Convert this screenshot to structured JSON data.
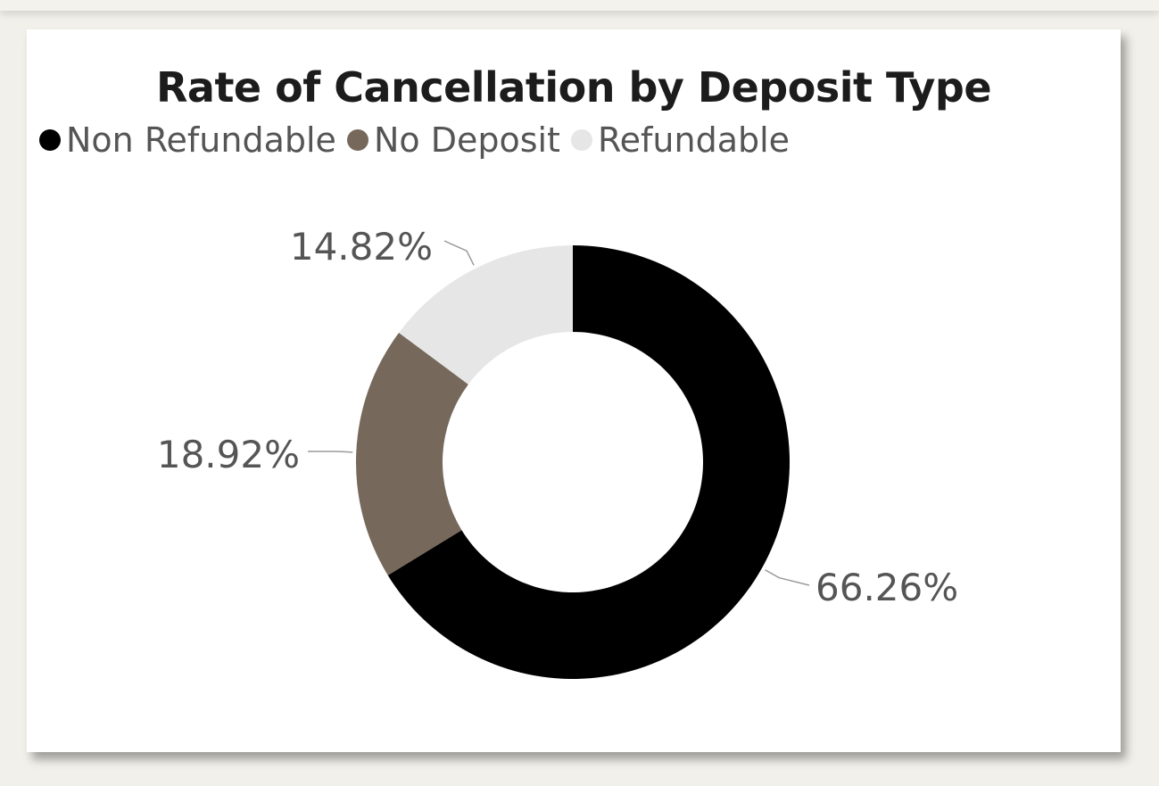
{
  "chart_data": {
    "type": "donut",
    "title": "Rate of Cancellation by Deposit Type",
    "legend_position": "top-left",
    "slices": [
      {
        "name": "Non Refundable",
        "value": 66.26,
        "label": "66.26%",
        "color": "#000000"
      },
      {
        "name": "No Deposit",
        "value": 18.92,
        "label": "18.92%",
        "color": "#76695c"
      },
      {
        "name": "Refundable",
        "value": 14.82,
        "label": "14.82%",
        "color": "#e6e6e6"
      }
    ]
  }
}
